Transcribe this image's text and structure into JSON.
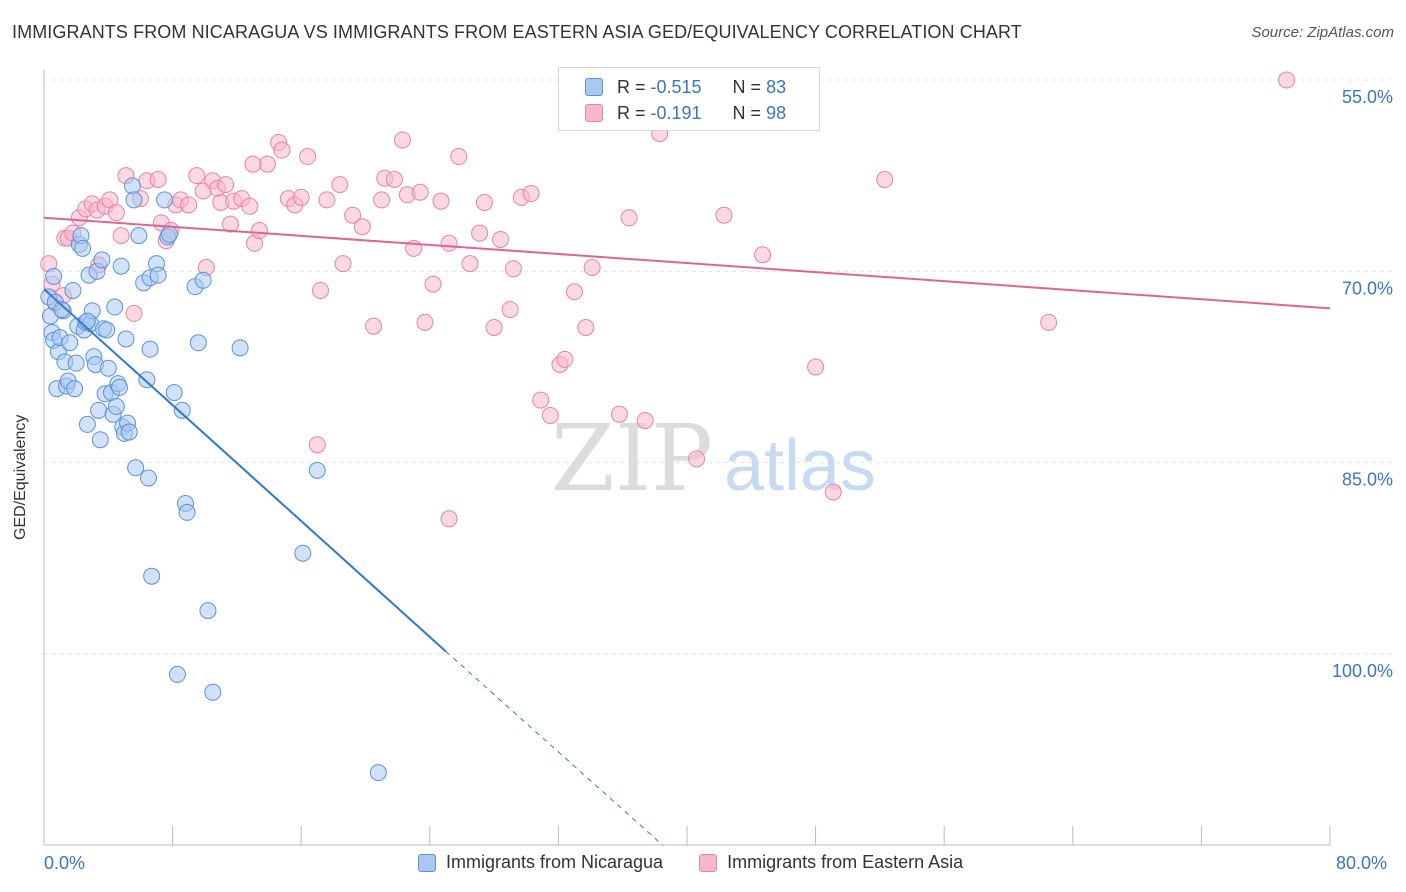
{
  "header": {
    "title": "IMMIGRANTS FROM NICARAGUA VS IMMIGRANTS FROM EASTERN ASIA GED/EQUIVALENCY CORRELATION CHART",
    "source": "Source: ZipAtlas.com"
  },
  "watermark": {
    "zip": "ZIP",
    "atlas": "atlas"
  },
  "legend": {
    "rows": [
      {
        "r_label": "R =",
        "r_value": "-0.515",
        "n_label": "N =",
        "n_value": "83",
        "color": "#a9c8f2"
      },
      {
        "r_label": "R =",
        "r_value": "-0.191",
        "n_label": "N =",
        "n_value": "98",
        "color": "#f7b8cc"
      }
    ]
  },
  "bottom_legend": {
    "items": [
      {
        "label": "Immigrants from Nicaragua",
        "color": "#a9c8f2"
      },
      {
        "label": "Immigrants from Eastern Asia",
        "color": "#f7b8cc"
      }
    ]
  },
  "axis": {
    "x_min_label": "0.0%",
    "x_max_label": "80.0%",
    "y_label": "GED/Equivalency",
    "y_ticks": [
      "100.0%",
      "85.0%",
      "70.0%",
      "55.0%"
    ]
  },
  "colors": {
    "blue_fill": "#a9c8f2",
    "blue_stroke": "#5b93d6",
    "blue_line": "#2f78d0",
    "pink_fill": "#f7b8cc",
    "pink_stroke": "#e883a4",
    "pink_line": "#e0658e",
    "grid": "#e3e3e3",
    "tick_label": "#3a75c4"
  },
  "chart_data": {
    "type": "scatter",
    "xlabel": "",
    "ylabel": "GED/Equivalency",
    "xlim": [
      0,
      80
    ],
    "ylim": [
      43,
      101
    ],
    "y_ticks": [
      55,
      70,
      85,
      100
    ],
    "grid": true,
    "legend_placement": "top-center",
    "series": [
      {
        "name": "Immigrants from Nicaragua",
        "r": -0.515,
        "n": 83,
        "trend": {
          "x": [
            0,
            25
          ],
          "y": [
            83.6,
            55.2
          ],
          "dashed_to": [
            38.5,
            40.0
          ]
        },
        "points": [
          [
            0.3,
            83.0
          ],
          [
            0.4,
            81.5
          ],
          [
            0.5,
            80.2
          ],
          [
            0.6,
            79.6
          ],
          [
            0.7,
            82.6
          ],
          [
            0.8,
            75.8
          ],
          [
            0.9,
            78.7
          ],
          [
            1.0,
            79.8
          ],
          [
            1.2,
            81.9
          ],
          [
            1.3,
            77.9
          ],
          [
            1.4,
            76.0
          ],
          [
            1.5,
            76.4
          ],
          [
            1.6,
            79.4
          ],
          [
            1.8,
            83.5
          ],
          [
            1.9,
            75.8
          ],
          [
            2.0,
            77.8
          ],
          [
            2.1,
            80.7
          ],
          [
            2.2,
            87.1
          ],
          [
            2.3,
            87.8
          ],
          [
            2.4,
            86.8
          ],
          [
            2.5,
            80.4
          ],
          [
            2.6,
            81.0
          ],
          [
            2.7,
            73.0
          ],
          [
            2.8,
            84.7
          ],
          [
            2.9,
            80.9
          ],
          [
            3.0,
            81.9
          ],
          [
            3.1,
            78.3
          ],
          [
            3.2,
            77.7
          ],
          [
            3.3,
            85.0
          ],
          [
            3.4,
            74.1
          ],
          [
            3.5,
            71.8
          ],
          [
            3.6,
            85.9
          ],
          [
            3.7,
            80.5
          ],
          [
            3.8,
            75.4
          ],
          [
            3.9,
            80.4
          ],
          [
            4.0,
            77.4
          ],
          [
            4.2,
            75.5
          ],
          [
            4.3,
            73.8
          ],
          [
            4.4,
            82.2
          ],
          [
            4.5,
            74.4
          ],
          [
            4.6,
            76.2
          ],
          [
            4.7,
            75.9
          ],
          [
            4.8,
            85.4
          ],
          [
            4.9,
            72.8
          ],
          [
            5.0,
            72.3
          ],
          [
            5.1,
            79.7
          ],
          [
            5.2,
            73.1
          ],
          [
            5.3,
            72.4
          ],
          [
            5.5,
            91.7
          ],
          [
            5.6,
            90.6
          ],
          [
            5.7,
            69.6
          ],
          [
            5.9,
            87.8
          ],
          [
            6.2,
            84.1
          ],
          [
            6.4,
            76.5
          ],
          [
            6.6,
            84.5
          ],
          [
            6.5,
            68.8
          ],
          [
            6.6,
            78.9
          ],
          [
            6.7,
            61.1
          ],
          [
            7.0,
            85.6
          ],
          [
            7.1,
            84.7
          ],
          [
            7.5,
            90.6
          ],
          [
            7.7,
            87.7
          ],
          [
            7.8,
            87.9
          ],
          [
            8.1,
            75.5
          ],
          [
            8.3,
            53.4
          ],
          [
            8.6,
            74.1
          ],
          [
            8.8,
            66.8
          ],
          [
            8.9,
            66.1
          ],
          [
            9.4,
            83.8
          ],
          [
            9.6,
            79.4
          ],
          [
            9.9,
            84.3
          ],
          [
            10.2,
            58.4
          ],
          [
            10.5,
            52.0
          ],
          [
            12.2,
            79.0
          ],
          [
            17.0,
            69.4
          ],
          [
            16.1,
            62.9
          ],
          [
            20.8,
            45.7
          ],
          [
            0.6,
            84.6
          ],
          [
            1.1,
            82.0
          ],
          [
            2.7,
            81.1
          ]
        ]
      },
      {
        "name": "Immigrants from Eastern Asia",
        "r": -0.191,
        "n": 98,
        "trend": {
          "x": [
            0,
            80
          ],
          "y": [
            89.2,
            82.1
          ]
        },
        "points": [
          [
            0.3,
            85.6
          ],
          [
            0.5,
            84.0
          ],
          [
            0.7,
            82.5
          ],
          [
            1.2,
            83.1
          ],
          [
            1.3,
            87.6
          ],
          [
            1.5,
            87.6
          ],
          [
            1.8,
            88.0
          ],
          [
            2.2,
            89.2
          ],
          [
            2.6,
            89.9
          ],
          [
            3.0,
            90.3
          ],
          [
            3.3,
            89.8
          ],
          [
            3.4,
            85.5
          ],
          [
            3.8,
            90.1
          ],
          [
            4.1,
            90.6
          ],
          [
            4.5,
            89.6
          ],
          [
            4.8,
            87.8
          ],
          [
            5.1,
            92.5
          ],
          [
            5.6,
            81.7
          ],
          [
            6.0,
            90.7
          ],
          [
            6.4,
            92.1
          ],
          [
            7.1,
            92.2
          ],
          [
            7.3,
            88.8
          ],
          [
            7.6,
            87.4
          ],
          [
            7.9,
            88.2
          ],
          [
            8.2,
            90.2
          ],
          [
            8.5,
            90.6
          ],
          [
            9.0,
            90.2
          ],
          [
            9.5,
            92.5
          ],
          [
            9.9,
            91.3
          ],
          [
            10.1,
            85.3
          ],
          [
            10.5,
            92.1
          ],
          [
            10.8,
            91.5
          ],
          [
            11.0,
            90.4
          ],
          [
            11.3,
            91.8
          ],
          [
            11.6,
            88.7
          ],
          [
            11.8,
            90.5
          ],
          [
            12.3,
            90.7
          ],
          [
            12.8,
            90.1
          ],
          [
            13.1,
            87.2
          ],
          [
            13.4,
            88.2
          ],
          [
            13.9,
            93.4
          ],
          [
            14.6,
            95.1
          ],
          [
            14.8,
            94.5
          ],
          [
            15.2,
            90.7
          ],
          [
            15.6,
            90.2
          ],
          [
            16.0,
            90.8
          ],
          [
            16.4,
            94.0
          ],
          [
            17.2,
            83.5
          ],
          [
            17.6,
            90.6
          ],
          [
            18.4,
            91.8
          ],
          [
            18.6,
            85.6
          ],
          [
            19.2,
            89.4
          ],
          [
            19.8,
            88.5
          ],
          [
            20.5,
            80.7
          ],
          [
            21.0,
            90.6
          ],
          [
            21.2,
            92.3
          ],
          [
            21.8,
            92.2
          ],
          [
            22.3,
            95.3
          ],
          [
            22.6,
            91.0
          ],
          [
            23.0,
            86.8
          ],
          [
            23.4,
            91.2
          ],
          [
            23.7,
            81.0
          ],
          [
            24.2,
            84.0
          ],
          [
            24.7,
            90.5
          ],
          [
            25.2,
            87.2
          ],
          [
            25.8,
            94.0
          ],
          [
            26.5,
            85.6
          ],
          [
            27.1,
            88.0
          ],
          [
            27.4,
            90.4
          ],
          [
            28.0,
            80.6
          ],
          [
            28.4,
            87.5
          ],
          [
            29.0,
            82.0
          ],
          [
            29.2,
            85.2
          ],
          [
            29.7,
            90.8
          ],
          [
            30.3,
            91.1
          ],
          [
            30.9,
            74.9
          ],
          [
            31.5,
            73.7
          ],
          [
            32.1,
            77.7
          ],
          [
            32.4,
            78.1
          ],
          [
            33.0,
            83.4
          ],
          [
            33.7,
            80.6
          ],
          [
            34.1,
            85.3
          ],
          [
            35.8,
            73.8
          ],
          [
            36.4,
            89.2
          ],
          [
            37.4,
            73.3
          ],
          [
            38.3,
            95.8
          ],
          [
            38.8,
            100.0
          ],
          [
            40.6,
            70.3
          ],
          [
            42.3,
            89.4
          ],
          [
            44.7,
            86.3
          ],
          [
            48.0,
            77.5
          ],
          [
            49.1,
            67.7
          ],
          [
            52.3,
            92.2
          ],
          [
            62.5,
            81.0
          ],
          [
            77.3,
            100.0
          ],
          [
            17.0,
            71.4
          ],
          [
            25.2,
            65.6
          ],
          [
            13.0,
            93.4
          ]
        ]
      }
    ]
  }
}
